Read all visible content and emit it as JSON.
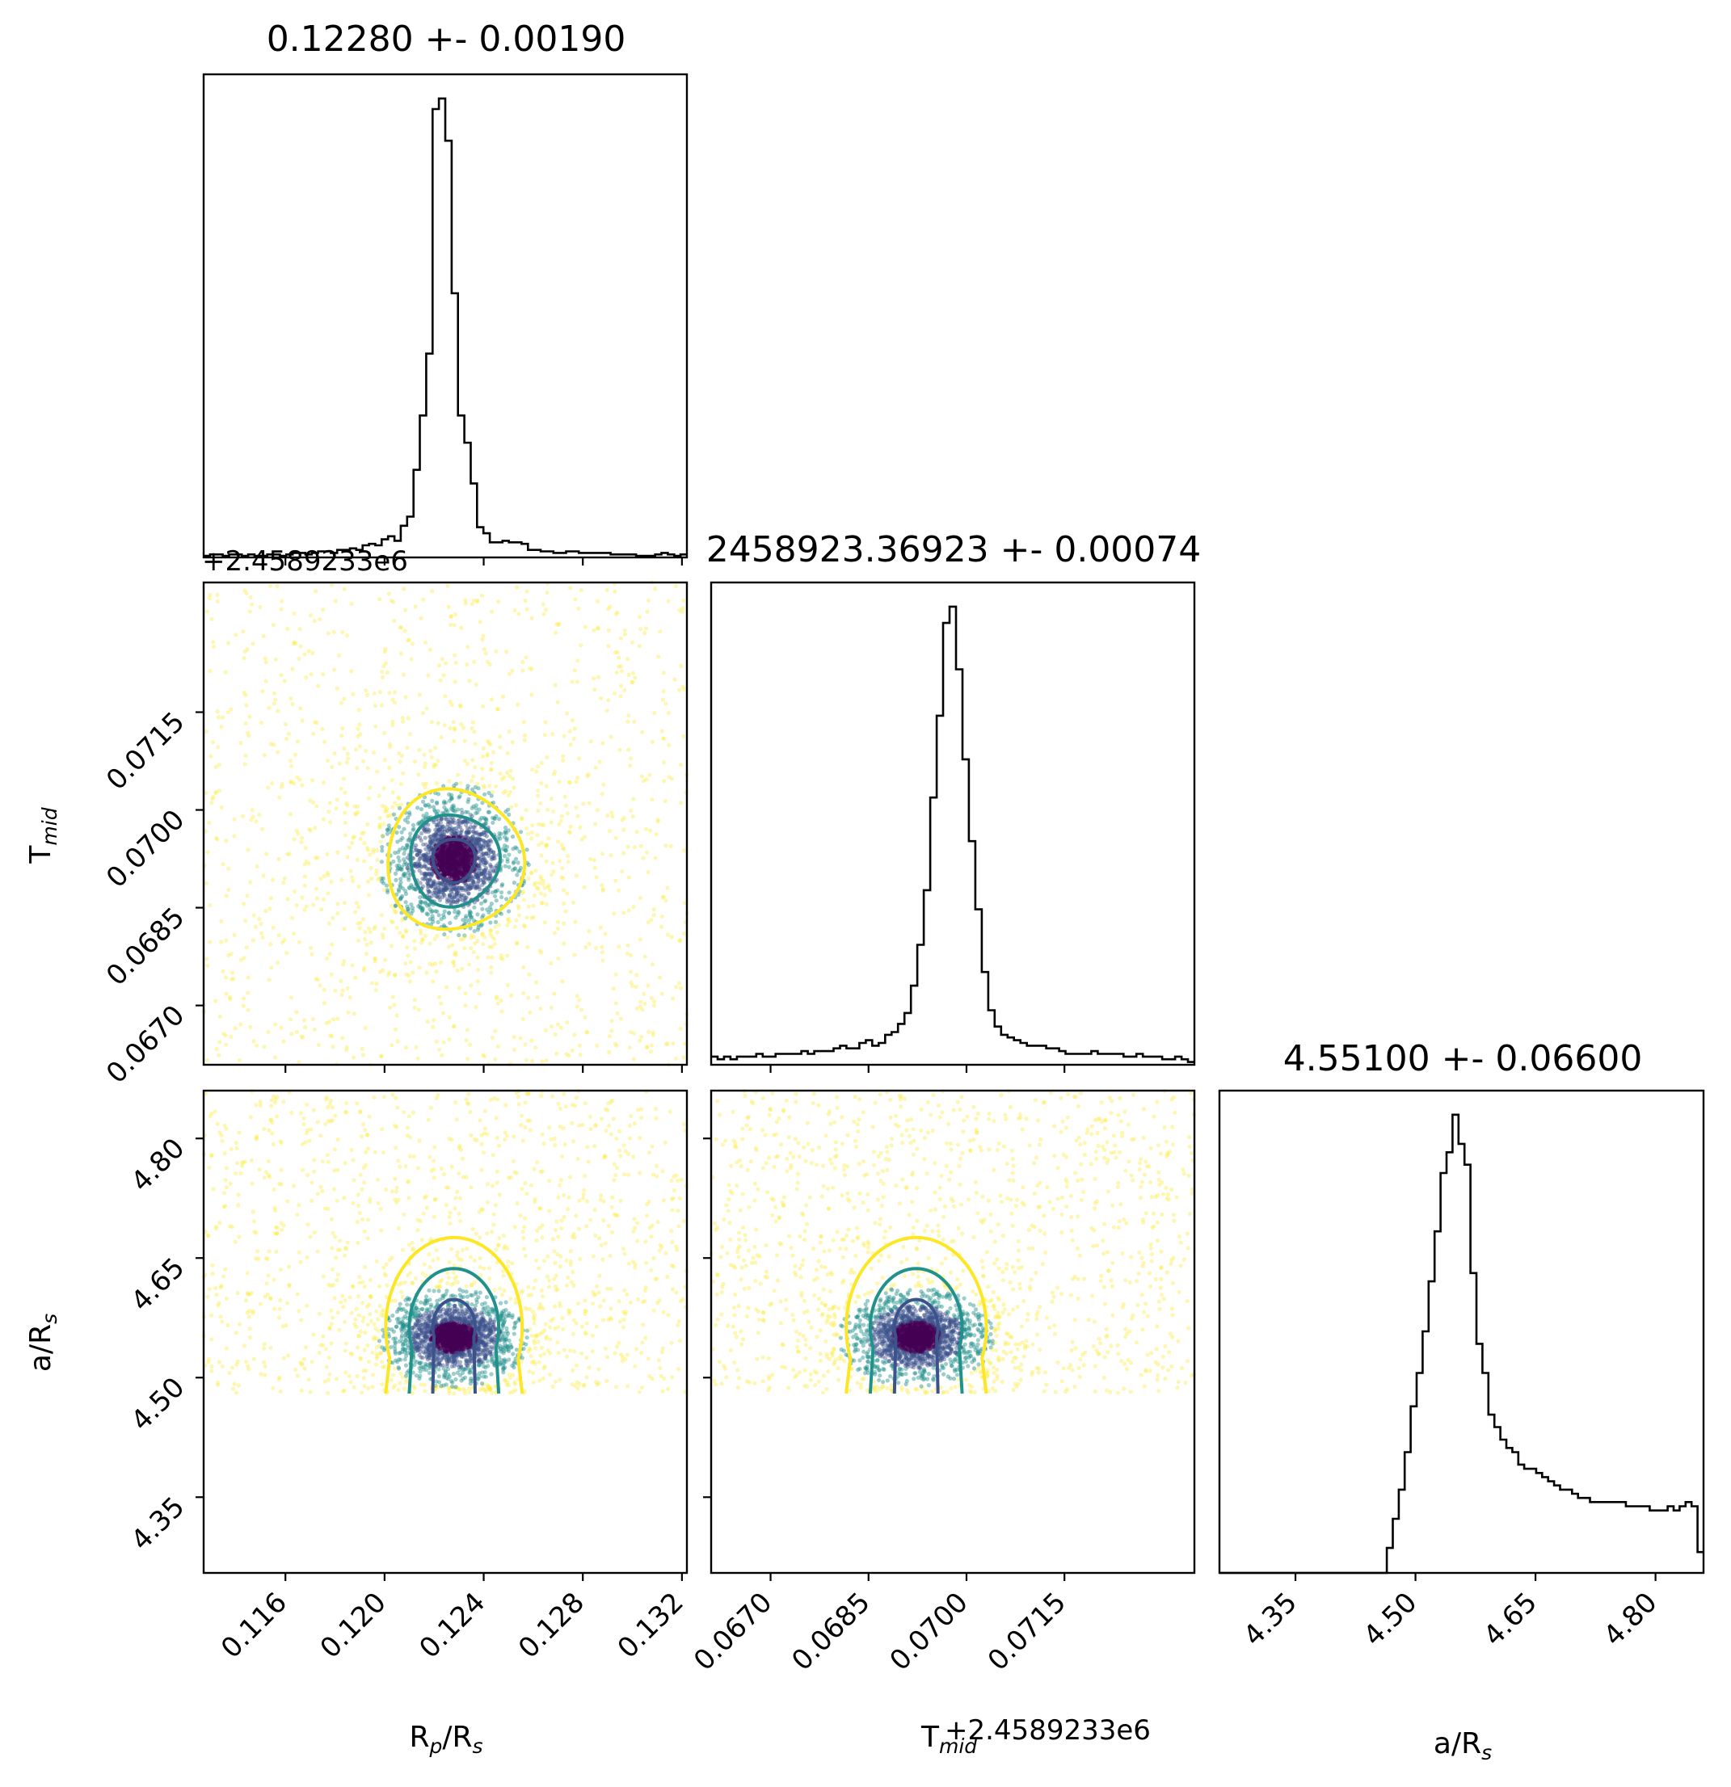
{
  "chart_data": {
    "type": "corner",
    "parameters": [
      {
        "key": "rp",
        "title": "0.12280 +- 0.00190",
        "label_main": "R",
        "label_sub": "p",
        "label_mid": "/R",
        "label_sub2": "s",
        "range": [
          0.1127,
          0.1322
        ],
        "ticks": [
          0.116,
          0.12,
          0.124,
          0.128,
          0.132
        ],
        "tick_labels": [
          "0.116",
          "0.120",
          "0.124",
          "0.128",
          "0.132"
        ],
        "center": 0.1228,
        "sigma": 0.0019
      },
      {
        "key": "tmid",
        "title": "2458923.36923 +- 0.00074",
        "label_main": "T",
        "label_sub": "mid",
        "offset": "+2.4589233e6",
        "range": [
          0.06609,
          0.07349
        ],
        "ticks": [
          0.067,
          0.0685,
          0.07,
          0.0715
        ],
        "tick_labels": [
          "0.0670",
          "0.0685",
          "0.0700",
          "0.0715"
        ],
        "center": 0.06923,
        "sigma": 0.00074
      },
      {
        "key": "ars",
        "title": "4.55100 +- 0.06600",
        "label_main": "a",
        "label_mid": "/R",
        "label_sub2": "s",
        "range": [
          4.255,
          4.86
        ],
        "ticks": [
          4.35,
          4.5,
          4.65,
          4.8
        ],
        "tick_labels": [
          "4.35",
          "4.50",
          "4.65",
          "4.80"
        ],
        "center": 4.551,
        "sigma": 0.066,
        "hard_min": 4.48
      }
    ],
    "histograms": {
      "rp": [
        1,
        2,
        2,
        1,
        2,
        2,
        1,
        2,
        1,
        1,
        2,
        2,
        1,
        2,
        3,
        3,
        2,
        3,
        4,
        4,
        3,
        5,
        5,
        6,
        5,
        8,
        9,
        8,
        12,
        14,
        11,
        21,
        27,
        58,
        94,
        135,
        297,
        304,
        276,
        175,
        94,
        76,
        49,
        20,
        16,
        10,
        10,
        11,
        10,
        10,
        9,
        5,
        5,
        4,
        4,
        3,
        3,
        4,
        4,
        3,
        3,
        3,
        3,
        3,
        2,
        2,
        2,
        2,
        1,
        1,
        1,
        2,
        3,
        2,
        1,
        2
      ],
      "tmid": [
        3,
        2,
        3,
        2,
        3,
        3,
        3,
        4,
        3,
        3,
        4,
        4,
        4,
        4,
        5,
        4,
        5,
        5,
        5,
        6,
        7,
        6,
        6,
        8,
        9,
        7,
        8,
        11,
        12,
        15,
        19,
        29,
        44,
        64,
        98,
        128,
        162,
        168,
        145,
        112,
        82,
        57,
        34,
        20,
        14,
        11,
        10,
        9,
        8,
        7,
        7,
        7,
        6,
        6,
        5,
        4,
        4,
        4,
        4,
        5,
        4,
        4,
        4,
        4,
        3,
        3,
        4,
        3,
        3,
        3,
        2,
        2,
        3,
        2,
        1
      ],
      "ars": [
        0,
        0,
        0,
        0,
        0,
        0,
        0,
        0,
        0,
        0,
        0,
        0,
        0,
        0,
        0,
        0,
        0,
        0,
        0,
        0,
        0,
        0,
        0,
        0,
        0,
        0,
        0,
        0,
        6,
        13,
        20,
        29,
        40,
        48,
        58,
        70,
        82,
        96,
        101,
        110,
        103,
        98,
        72,
        55,
        48,
        38,
        35,
        32,
        30,
        29,
        26,
        25,
        25,
        24,
        23,
        22,
        21,
        20,
        20,
        19,
        18,
        18,
        17,
        17,
        17,
        17,
        17,
        17,
        16,
        16,
        16,
        16,
        15,
        15,
        15,
        16,
        15,
        16,
        17,
        16,
        5
      ]
    },
    "series": [
      {
        "name": "",
        "color": "#440154"
      },
      {
        "name": "",
        "color": "#3b528b"
      },
      {
        "name": "",
        "color": "#21918c"
      },
      {
        "name": "",
        "color": "#fde725"
      }
    ]
  }
}
